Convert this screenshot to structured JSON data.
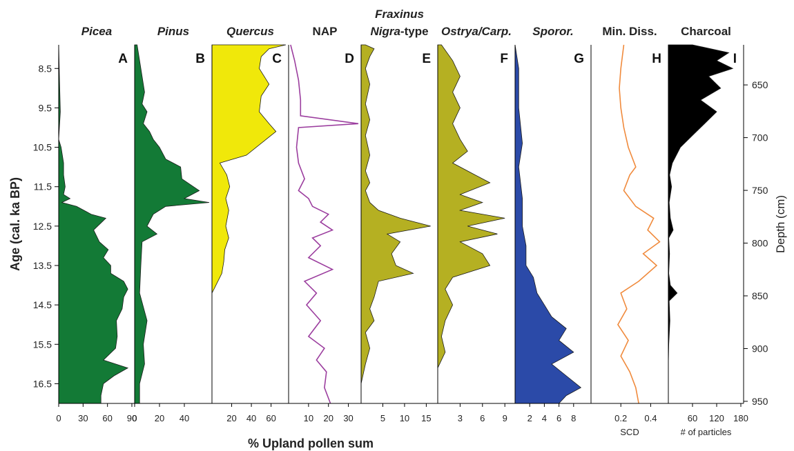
{
  "chart_data": {
    "type": "area",
    "y_left": {
      "label": "Age (cal. ka  BP)",
      "ticks": [
        "8.5",
        "9.5",
        "10.5",
        "11.5",
        "12.5",
        "13.5",
        "14.5",
        "15.5",
        "16.5"
      ],
      "range": [
        7.9,
        17.0
      ]
    },
    "y_right": {
      "label": "Depth (cm)",
      "ticks": [
        "650",
        "700",
        "750",
        "800",
        "850",
        "900",
        "950"
      ],
      "range": [
        612,
        952
      ]
    },
    "x_common_label": "% Upland pollen sum",
    "panels": [
      {
        "id": "A",
        "title": "Picea",
        "italic": true,
        "color": "#137a36",
        "style": "fill",
        "xmax": 90,
        "tick_values": [
          0,
          30,
          60,
          90
        ],
        "tick_labels": [
          "0",
          "30",
          "60",
          "90"
        ],
        "unit_label": "",
        "profile": [
          [
            7.9,
            0
          ],
          [
            8.8,
            1
          ],
          [
            9.6,
            2
          ],
          [
            10.3,
            0
          ],
          [
            10.5,
            3
          ],
          [
            10.9,
            6
          ],
          [
            11.2,
            6
          ],
          [
            11.5,
            8
          ],
          [
            11.7,
            6
          ],
          [
            11.8,
            14
          ],
          [
            11.9,
            4
          ],
          [
            12.0,
            22
          ],
          [
            12.2,
            40
          ],
          [
            12.3,
            58
          ],
          [
            12.6,
            43
          ],
          [
            12.9,
            50
          ],
          [
            13.1,
            61
          ],
          [
            13.3,
            55
          ],
          [
            13.5,
            64
          ],
          [
            13.7,
            64
          ],
          [
            13.9,
            80
          ],
          [
            14.1,
            85
          ],
          [
            14.3,
            80
          ],
          [
            14.6,
            78
          ],
          [
            14.9,
            71
          ],
          [
            15.3,
            72
          ],
          [
            15.6,
            70
          ],
          [
            15.9,
            55
          ],
          [
            16.1,
            85
          ],
          [
            16.3,
            68
          ],
          [
            16.5,
            55
          ],
          [
            16.8,
            52
          ],
          [
            17.0,
            52
          ]
        ]
      },
      {
        "id": "B",
        "title": "Pinus",
        "italic": true,
        "color": "#137a36",
        "style": "fill",
        "xmax": 60,
        "tick_values": [
          0,
          20,
          40
        ],
        "tick_labels": [
          "0",
          "20",
          "40"
        ],
        "unit_label": "",
        "profile": [
          [
            7.9,
            2
          ],
          [
            8.5,
            5
          ],
          [
            9.1,
            8
          ],
          [
            9.4,
            6
          ],
          [
            9.6,
            10
          ],
          [
            9.9,
            7
          ],
          [
            10.1,
            12
          ],
          [
            10.3,
            15
          ],
          [
            10.5,
            20
          ],
          [
            10.8,
            25
          ],
          [
            11.0,
            37
          ],
          [
            11.3,
            38
          ],
          [
            11.6,
            52
          ],
          [
            11.8,
            40
          ],
          [
            11.9,
            60
          ],
          [
            12.0,
            25
          ],
          [
            12.2,
            15
          ],
          [
            12.5,
            10
          ],
          [
            12.7,
            18
          ],
          [
            12.9,
            6
          ],
          [
            13.5,
            5
          ],
          [
            14.2,
            4
          ],
          [
            14.9,
            10
          ],
          [
            15.5,
            7
          ],
          [
            16.0,
            8
          ],
          [
            16.5,
            4
          ],
          [
            17.0,
            4
          ]
        ]
      },
      {
        "id": "C",
        "title": "Quercus",
        "italic": true,
        "color": "#f0e80a",
        "style": "fill",
        "xmax": 75,
        "tick_values": [
          20,
          40,
          60
        ],
        "tick_labels": [
          "20",
          "40",
          "60"
        ],
        "unit_label": "",
        "profile": [
          [
            7.9,
            75
          ],
          [
            8.0,
            58
          ],
          [
            8.2,
            50
          ],
          [
            8.5,
            48
          ],
          [
            8.9,
            58
          ],
          [
            9.2,
            50
          ],
          [
            9.6,
            48
          ],
          [
            9.9,
            58
          ],
          [
            10.1,
            65
          ],
          [
            10.3,
            55
          ],
          [
            10.7,
            35
          ],
          [
            10.9,
            8
          ],
          [
            11.2,
            15
          ],
          [
            11.5,
            18
          ],
          [
            11.8,
            14
          ],
          [
            12.1,
            17
          ],
          [
            12.5,
            14
          ],
          [
            12.8,
            17
          ],
          [
            13.1,
            13
          ],
          [
            13.4,
            12
          ],
          [
            13.7,
            10
          ],
          [
            14.1,
            2
          ],
          [
            14.2,
            0
          ],
          [
            17.0,
            0
          ]
        ]
      },
      {
        "id": "D",
        "title": "NAP",
        "italic": false,
        "color": "#9b3d9e",
        "style": "line",
        "xmax": 35,
        "tick_values": [
          10,
          20,
          30
        ],
        "tick_labels": [
          "10",
          "20",
          "30"
        ],
        "unit_label": "",
        "profile": [
          [
            7.9,
            1
          ],
          [
            8.3,
            3
          ],
          [
            8.8,
            5
          ],
          [
            9.3,
            6
          ],
          [
            9.7,
            6
          ],
          [
            9.9,
            35
          ],
          [
            10.0,
            5
          ],
          [
            10.5,
            4
          ],
          [
            10.9,
            5
          ],
          [
            11.3,
            8
          ],
          [
            11.6,
            5
          ],
          [
            11.8,
            10
          ],
          [
            12.0,
            12
          ],
          [
            12.2,
            20
          ],
          [
            12.4,
            16
          ],
          [
            12.6,
            22
          ],
          [
            12.8,
            12
          ],
          [
            13.0,
            16
          ],
          [
            13.3,
            10
          ],
          [
            13.6,
            22
          ],
          [
            13.9,
            8
          ],
          [
            14.2,
            14
          ],
          [
            14.5,
            9
          ],
          [
            14.9,
            16
          ],
          [
            15.3,
            10
          ],
          [
            15.6,
            18
          ],
          [
            15.9,
            14
          ],
          [
            16.2,
            19
          ],
          [
            16.6,
            18
          ],
          [
            17.0,
            21
          ]
        ]
      },
      {
        "id": "E",
        "title": "Fraxinus Nigra-type",
        "italic": true,
        "color": "#b5b022",
        "style": "fill",
        "xmax": 17,
        "tick_values": [
          5,
          10,
          15
        ],
        "tick_labels": [
          "5",
          "10",
          "15"
        ],
        "unit_label": "",
        "profile": [
          [
            7.9,
            1
          ],
          [
            8.0,
            3
          ],
          [
            8.2,
            2
          ],
          [
            8.5,
            1
          ],
          [
            8.9,
            2
          ],
          [
            9.4,
            1
          ],
          [
            9.8,
            2
          ],
          [
            10.2,
            1
          ],
          [
            10.7,
            2
          ],
          [
            11.1,
            1
          ],
          [
            11.4,
            2
          ],
          [
            11.6,
            1
          ],
          [
            11.9,
            2
          ],
          [
            12.1,
            4
          ],
          [
            12.3,
            9
          ],
          [
            12.5,
            16
          ],
          [
            12.7,
            6
          ],
          [
            12.9,
            9
          ],
          [
            13.2,
            7
          ],
          [
            13.5,
            8
          ],
          [
            13.7,
            12
          ],
          [
            13.9,
            4
          ],
          [
            14.3,
            3
          ],
          [
            14.6,
            2
          ],
          [
            14.9,
            3
          ],
          [
            15.2,
            1
          ],
          [
            15.6,
            2
          ],
          [
            16.0,
            1
          ],
          [
            16.5,
            0
          ],
          [
            17.0,
            0
          ]
        ]
      },
      {
        "id": "F",
        "title": "Ostrya/Carp.",
        "italic": true,
        "color": "#b5b022",
        "style": "fill",
        "xmax": 10,
        "tick_values": [
          3,
          6,
          9
        ],
        "tick_labels": [
          "3",
          "6",
          "9"
        ],
        "unit_label": "",
        "profile": [
          [
            7.9,
            0.5
          ],
          [
            8.3,
            2
          ],
          [
            8.7,
            3
          ],
          [
            9.1,
            2
          ],
          [
            9.5,
            3
          ],
          [
            9.9,
            2
          ],
          [
            10.3,
            3
          ],
          [
            10.6,
            4
          ],
          [
            10.9,
            2
          ],
          [
            11.2,
            5
          ],
          [
            11.4,
            7
          ],
          [
            11.7,
            3
          ],
          [
            11.9,
            6
          ],
          [
            12.1,
            3
          ],
          [
            12.3,
            9
          ],
          [
            12.5,
            4
          ],
          [
            12.7,
            8
          ],
          [
            12.9,
            3
          ],
          [
            13.2,
            6
          ],
          [
            13.5,
            7
          ],
          [
            13.8,
            2
          ],
          [
            14.1,
            1
          ],
          [
            14.5,
            2
          ],
          [
            14.9,
            1
          ],
          [
            15.3,
            0.5
          ],
          [
            15.7,
            1
          ],
          [
            16.1,
            0
          ],
          [
            17.0,
            0
          ]
        ]
      },
      {
        "id": "G",
        "title": "Sporor.",
        "italic": true,
        "color": "#2b4aa8",
        "style": "fill",
        "xmax": 10,
        "tick_values": [
          2,
          4,
          6,
          8
        ],
        "tick_labels": [
          "2",
          "4",
          "6",
          "8"
        ],
        "unit_label": "",
        "profile": [
          [
            7.9,
            0
          ],
          [
            8.5,
            0.5
          ],
          [
            9.5,
            0.5
          ],
          [
            10.4,
            1
          ],
          [
            11.0,
            0.5
          ],
          [
            11.8,
            1
          ],
          [
            12.5,
            1
          ],
          [
            13.0,
            1.5
          ],
          [
            13.5,
            1.5
          ],
          [
            13.8,
            2.5
          ],
          [
            14.2,
            3
          ],
          [
            14.5,
            4
          ],
          [
            14.8,
            5
          ],
          [
            15.1,
            7
          ],
          [
            15.4,
            6
          ],
          [
            15.7,
            8
          ],
          [
            16.0,
            5
          ],
          [
            16.3,
            7
          ],
          [
            16.6,
            9
          ],
          [
            16.8,
            7
          ],
          [
            17.0,
            6
          ]
        ]
      },
      {
        "id": "H",
        "title": "Min. Diss.",
        "italic": false,
        "color": "#f08a3c",
        "style": "line",
        "xmax": 0.5,
        "tick_values": [
          0.2,
          0.4
        ],
        "tick_labels": [
          "0.2",
          "0.4"
        ],
        "unit_label": "SCD",
        "profile": [
          [
            7.9,
            0.22
          ],
          [
            8.5,
            0.2
          ],
          [
            9.0,
            0.19
          ],
          [
            9.5,
            0.2
          ],
          [
            10.0,
            0.22
          ],
          [
            10.5,
            0.25
          ],
          [
            11.0,
            0.3
          ],
          [
            11.2,
            0.26
          ],
          [
            11.6,
            0.22
          ],
          [
            12.0,
            0.3
          ],
          [
            12.3,
            0.42
          ],
          [
            12.6,
            0.38
          ],
          [
            12.9,
            0.46
          ],
          [
            13.2,
            0.35
          ],
          [
            13.5,
            0.44
          ],
          [
            13.9,
            0.32
          ],
          [
            14.2,
            0.2
          ],
          [
            14.6,
            0.24
          ],
          [
            15.0,
            0.18
          ],
          [
            15.4,
            0.25
          ],
          [
            15.8,
            0.2
          ],
          [
            16.2,
            0.26
          ],
          [
            16.6,
            0.3
          ],
          [
            17.0,
            0.32
          ]
        ]
      },
      {
        "id": "I",
        "title": "Charcoal",
        "italic": false,
        "color": "#000000",
        "style": "fill",
        "xmax": 180,
        "tick_values": [
          60,
          120,
          180
        ],
        "tick_labels": [
          "60",
          "120",
          "180"
        ],
        "unit_label": "# of particles",
        "profile": [
          [
            7.9,
            60
          ],
          [
            8.1,
            150
          ],
          [
            8.3,
            120
          ],
          [
            8.5,
            160
          ],
          [
            8.7,
            100
          ],
          [
            9.0,
            130
          ],
          [
            9.3,
            80
          ],
          [
            9.6,
            120
          ],
          [
            9.9,
            90
          ],
          [
            10.2,
            60
          ],
          [
            10.5,
            30
          ],
          [
            10.9,
            10
          ],
          [
            11.2,
            3
          ],
          [
            11.5,
            8
          ],
          [
            11.9,
            2
          ],
          [
            12.3,
            5
          ],
          [
            12.6,
            12
          ],
          [
            12.8,
            1
          ],
          [
            13.2,
            3
          ],
          [
            13.7,
            1
          ],
          [
            14.0,
            5
          ],
          [
            14.2,
            22
          ],
          [
            14.4,
            2
          ],
          [
            14.9,
            4
          ],
          [
            15.5,
            1
          ],
          [
            16.0,
            0
          ],
          [
            17.0,
            0
          ]
        ]
      }
    ]
  }
}
